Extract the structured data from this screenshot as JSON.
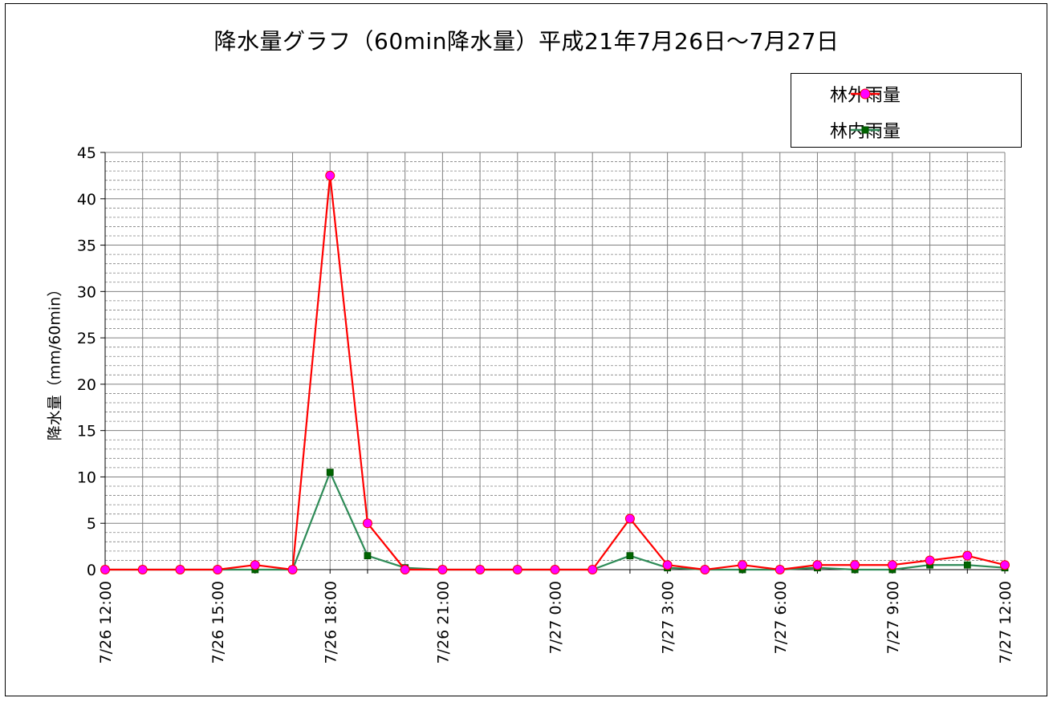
{
  "chart_data": {
    "type": "line",
    "title": "降水量グラフ（60min降水量）平成21年7月26日～7月27日",
    "ylabel": "降水量（mm/60min）",
    "ylim": [
      0,
      45
    ],
    "y_ticks": [
      0,
      5,
      10,
      15,
      20,
      25,
      30,
      35,
      40,
      45
    ],
    "x": [
      "7/26 12:00",
      "7/26 13:00",
      "7/26 14:00",
      "7/26 15:00",
      "7/26 16:00",
      "7/26 17:00",
      "7/26 18:00",
      "7/26 19:00",
      "7/26 20:00",
      "7/26 21:00",
      "7/26 22:00",
      "7/26 23:00",
      "7/27 0:00",
      "7/27 1:00",
      "7/27 2:00",
      "7/27 3:00",
      "7/27 4:00",
      "7/27 5:00",
      "7/27 6:00",
      "7/27 7:00",
      "7/27 8:00",
      "7/27 9:00",
      "7/27 10:00",
      "7/27 11:00",
      "7/27 12:00"
    ],
    "x_tick_labels": [
      "7/26 12:00",
      "7/26 15:00",
      "7/26 18:00",
      "7/26 21:00",
      "7/27 0:00",
      "7/27 3:00",
      "7/27 6:00",
      "7/27 9:00",
      "7/27 12:00"
    ],
    "grid": true,
    "legend_position": "top-right",
    "series": [
      {
        "name": "林外雨量",
        "color": "#ff0000",
        "marker": "circle",
        "marker_color": "#ff00ff",
        "values": [
          0,
          0,
          0,
          0,
          0.5,
          0,
          42.5,
          5,
          0,
          0,
          0,
          0,
          0,
          0,
          5.5,
          0.5,
          0,
          0.5,
          0,
          0.5,
          0.5,
          0.5,
          1,
          1.5,
          0.5
        ]
      },
      {
        "name": "林内雨量",
        "color": "#2e8b57",
        "marker": "square",
        "marker_color": "#006400",
        "values": [
          0,
          0,
          0,
          0,
          0,
          0,
          10.5,
          1.5,
          0.2,
          0,
          0,
          0,
          0,
          0,
          1.5,
          0.2,
          0,
          0,
          0,
          0.2,
          0,
          0,
          0.5,
          0.5,
          0.2
        ]
      }
    ]
  }
}
